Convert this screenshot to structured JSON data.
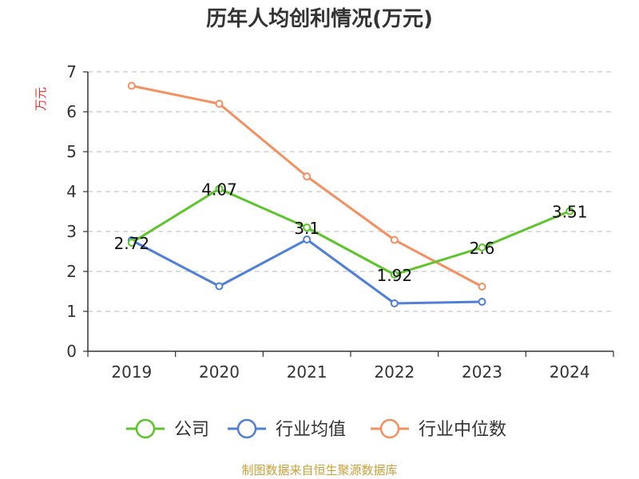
{
  "chart_data": {
    "type": "line",
    "title": "历年人均创利情况(万元)",
    "ylabel": "万元",
    "xlabel": "",
    "categories": [
      "2019",
      "2020",
      "2021",
      "2022",
      "2023",
      "2024"
    ],
    "ylim": [
      0,
      7
    ],
    "yticks": [
      0,
      1,
      2,
      3,
      4,
      5,
      6,
      7
    ],
    "grid": true,
    "legend_position": "bottom",
    "series": [
      {
        "name": "公司",
        "color": "#5ec42c",
        "values": [
          2.72,
          4.07,
          3.1,
          1.92,
          2.6,
          3.51
        ],
        "labels": [
          "2.72",
          "4.07",
          "3.1",
          "1.92",
          "2.6",
          "3.51"
        ]
      },
      {
        "name": "行业均值",
        "color": "#4f7fd6",
        "values": [
          2.78,
          1.63,
          2.8,
          1.2,
          1.24,
          null
        ]
      },
      {
        "name": "行业中位数",
        "color": "#f39060",
        "values": [
          6.65,
          6.2,
          4.38,
          2.79,
          1.62,
          null
        ]
      }
    ]
  },
  "footer": {
    "source": "制图数据来自恒生聚源数据库"
  }
}
